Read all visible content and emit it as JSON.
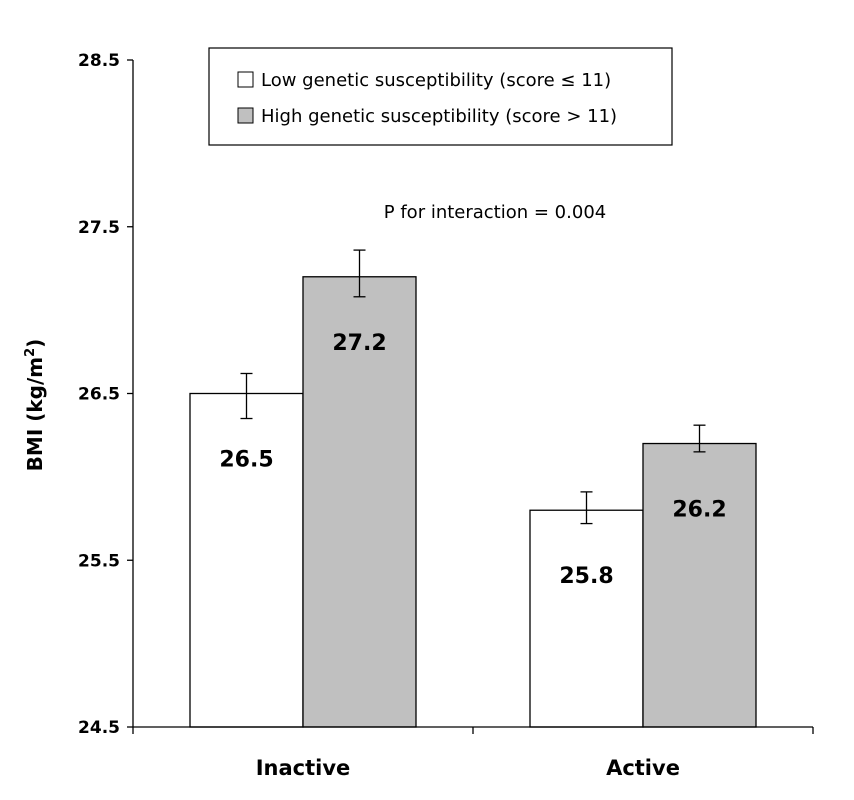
{
  "chart_data": {
    "type": "bar",
    "categories": [
      "Inactive",
      "Active"
    ],
    "series": [
      {
        "name": "Low genetic susceptibility (score ≤ 11)",
        "values": [
          26.5,
          25.8
        ],
        "display_values": [
          "26.5",
          "25.8"
        ],
        "error_low": [
          26.35,
          25.72
        ],
        "error_high": [
          26.62,
          25.91
        ],
        "color": "#ffffff"
      },
      {
        "name": "High genetic susceptibility (score > 11)",
        "values": [
          27.2,
          26.2
        ],
        "display_values": [
          "27.2",
          "26.2"
        ],
        "error_low": [
          27.08,
          26.15
        ],
        "error_high": [
          27.36,
          26.31
        ],
        "color": "#c0c0c0"
      }
    ],
    "ylabel": "BMI (kg/m²)",
    "ylabel_main": "BMI (kg/m",
    "ylabel_sup": "2",
    "ylabel_end": ")",
    "ylim": [
      24.5,
      28.5
    ],
    "yticks": [
      "24.5",
      "25.5",
      "26.5",
      "27.5",
      "28.5"
    ],
    "annotation": "P for interaction = 0.004",
    "legend_position": "top",
    "grid": false
  }
}
